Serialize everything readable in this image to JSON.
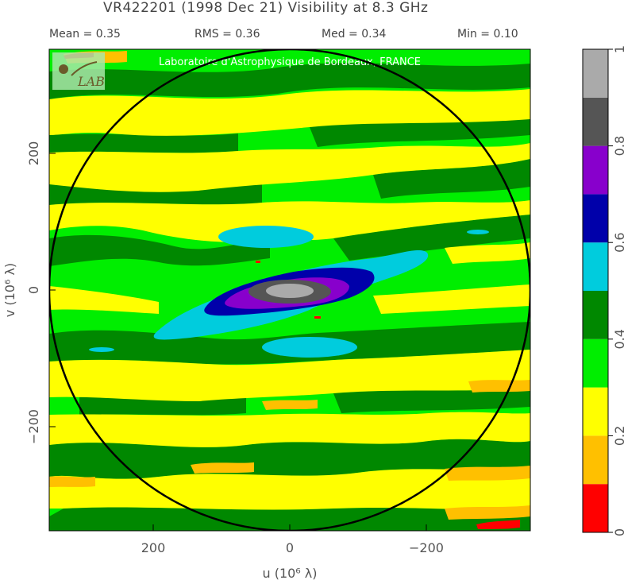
{
  "header": {
    "title": "VR422201   (1998 Dec 21)    Visibility at   8.3 GHz",
    "stats": [
      {
        "key": "mean",
        "text": "Mean =  0.35"
      },
      {
        "key": "rms",
        "text": "RMS =  0.36"
      },
      {
        "key": "med",
        "text": "Med =  0.34"
      },
      {
        "key": "min",
        "text": "Min =  0.10"
      }
    ]
  },
  "watermark": "Laboratoire d'Astrophysique de Bordeaux, FRANCE",
  "logo_text": "LAB",
  "chart_data": {
    "type": "heatmap",
    "title": "VR422201   (1998 Dec 21)    Visibility at   8.3 GHz",
    "xlabel": "u  (10⁶ λ)",
    "ylabel": "v  (10⁶ λ)",
    "xlim": [
      350,
      -350
    ],
    "ylim": [
      -350,
      350
    ],
    "x_ticks": [
      200,
      0,
      -200
    ],
    "y_ticks": [
      200,
      0,
      -200
    ],
    "x_tick_labels": [
      "200",
      "0",
      "−200"
    ],
    "y_tick_labels": [
      "200",
      "0",
      "−200"
    ],
    "circle_radius": 350,
    "colorbar": {
      "range": [
        0,
        1
      ],
      "ticks": [
        0,
        0.2,
        0.4,
        0.6,
        0.8,
        1
      ],
      "tick_labels": [
        "0",
        "0.2",
        "0.4",
        "0.6",
        "0.8",
        "1"
      ],
      "levels": [
        {
          "from": 0.0,
          "to": 0.1,
          "color": "#ff0000"
        },
        {
          "from": 0.1,
          "to": 0.2,
          "color": "#ffc000"
        },
        {
          "from": 0.2,
          "to": 0.3,
          "color": "#ffff00"
        },
        {
          "from": 0.3,
          "to": 0.4,
          "color": "#00ee00"
        },
        {
          "from": 0.4,
          "to": 0.5,
          "color": "#008800"
        },
        {
          "from": 0.5,
          "to": 0.6,
          "color": "#00ccdd"
        },
        {
          "from": 0.6,
          "to": 0.7,
          "color": "#0000aa"
        },
        {
          "from": 0.7,
          "to": 0.8,
          "color": "#8800cc"
        },
        {
          "from": 0.8,
          "to": 0.9,
          "color": "#555555"
        },
        {
          "from": 0.9,
          "to": 1.0,
          "color": "#aaaaaa"
        }
      ]
    },
    "features": [
      {
        "name": "core",
        "u": 0,
        "v": 0,
        "level": 0.95
      },
      {
        "name": "inner-ring",
        "u": 0,
        "v": 0,
        "level": 0.85
      },
      {
        "name": "side-lobe-north",
        "u": -20,
        "v": 80,
        "level": 0.55
      },
      {
        "name": "side-lobe-south",
        "u": 20,
        "v": -80,
        "level": 0.55
      }
    ]
  }
}
